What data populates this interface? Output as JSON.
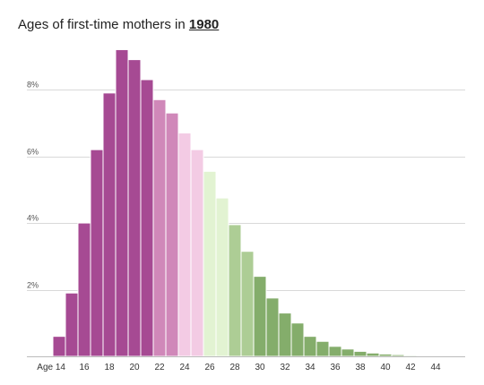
{
  "title": {
    "prefix": "Ages of first-time mothers in",
    "year": "1980"
  },
  "chart_data": {
    "type": "bar",
    "title": "Ages of first-time mothers in 1980",
    "xlabel": "",
    "ylabel": "",
    "ylim": [
      0,
      9.4
    ],
    "y_ticks": [
      2,
      4,
      6,
      8
    ],
    "y_tick_labels": [
      "2%",
      "4%",
      "6%",
      "8%"
    ],
    "categories": [
      14,
      15,
      16,
      17,
      18,
      19,
      20,
      21,
      22,
      23,
      24,
      25,
      26,
      27,
      28,
      29,
      30,
      31,
      32,
      33,
      34,
      35,
      36,
      37,
      38,
      39,
      40,
      41,
      42,
      43,
      44
    ],
    "values": [
      0.6,
      1.9,
      4.0,
      6.2,
      7.9,
      9.2,
      8.9,
      8.3,
      7.7,
      7.3,
      6.7,
      6.2,
      5.55,
      4.75,
      3.95,
      3.15,
      2.4,
      1.75,
      1.3,
      1.0,
      0.6,
      0.45,
      0.3,
      0.22,
      0.15,
      0.1,
      0.07,
      0.05,
      0.03,
      0.02,
      0.01
    ],
    "x_tick_labels": [
      "Age 14",
      "16",
      "18",
      "20",
      "22",
      "24",
      "26",
      "28",
      "30",
      "32",
      "34",
      "36",
      "38",
      "40",
      "42",
      "44"
    ],
    "x_tick_values": [
      14,
      16,
      18,
      20,
      22,
      24,
      26,
      28,
      30,
      32,
      34,
      36,
      38,
      40,
      42,
      44
    ],
    "colors": {
      "dark_purple": "#a64a93",
      "mid_pink": "#d088b9",
      "light_pink": "#f3cbe4",
      "light_green": "#e2f3d2",
      "mid_green": "#adcd95",
      "dark_green": "#84ad6b"
    },
    "color_by_age": [
      "#a64a93",
      "#a64a93",
      "#a64a93",
      "#a64a93",
      "#a64a93",
      "#a64a93",
      "#a64a93",
      "#a64a93",
      "#d088b9",
      "#d088b9",
      "#f3cbe4",
      "#f3cbe4",
      "#e2f3d2",
      "#e2f3d2",
      "#adcd95",
      "#adcd95",
      "#84ad6b",
      "#84ad6b",
      "#84ad6b",
      "#84ad6b",
      "#84ad6b",
      "#84ad6b",
      "#84ad6b",
      "#84ad6b",
      "#84ad6b",
      "#84ad6b",
      "#84ad6b",
      "#84ad6b",
      "#84ad6b",
      "#84ad6b",
      "#84ad6b"
    ]
  }
}
